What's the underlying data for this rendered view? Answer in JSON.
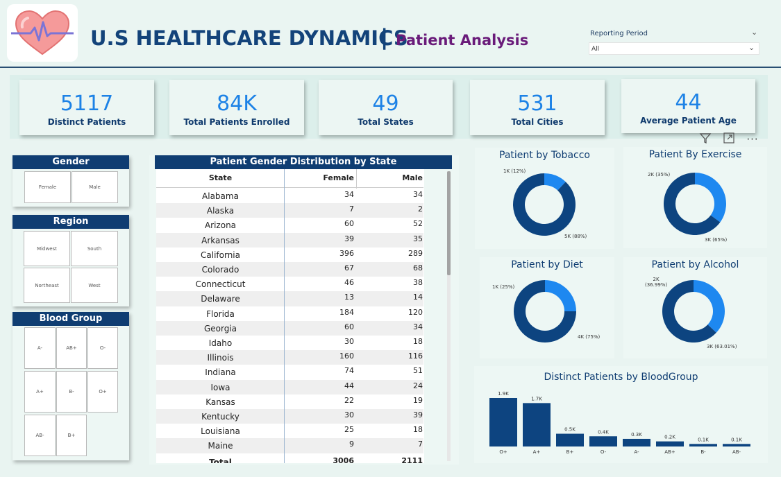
{
  "header": {
    "title": "U.S HEALTHCARE DYNAMICS",
    "separator": "|",
    "subtitle": "Patient Analysis",
    "reporting_period": {
      "label": "Reporting Period",
      "value": "All"
    }
  },
  "kpis": [
    {
      "value": "5117",
      "label": "Distinct Patients"
    },
    {
      "value": "84K",
      "label": "Total Patients Enrolled"
    },
    {
      "value": "49",
      "label": "Total States"
    },
    {
      "value": "531",
      "label": "Total Cities"
    },
    {
      "value": "44",
      "label": "Average Patient Age"
    }
  ],
  "slicers": {
    "gender": {
      "title": "Gender",
      "options": [
        "Female",
        "Male"
      ]
    },
    "region": {
      "title": "Region",
      "options": [
        "Midwest",
        "South",
        "Northeast",
        "West"
      ]
    },
    "blood_group": {
      "title": "Blood Group",
      "options": [
        "A-",
        "AB+",
        "O-",
        "A+",
        "B-",
        "O+",
        "AB-",
        "B+"
      ]
    }
  },
  "table": {
    "title": "Patient Gender Distribution by State",
    "columns": [
      "State",
      "Female",
      "Male"
    ],
    "rows": [
      [
        "Alabama",
        "34",
        "34"
      ],
      [
        "Alaska",
        "7",
        "2"
      ],
      [
        "Arizona",
        "60",
        "52"
      ],
      [
        "Arkansas",
        "39",
        "35"
      ],
      [
        "California",
        "396",
        "289"
      ],
      [
        "Colorado",
        "67",
        "68"
      ],
      [
        "Connecticut",
        "46",
        "38"
      ],
      [
        "Delaware",
        "13",
        "14"
      ],
      [
        "Florida",
        "184",
        "120"
      ],
      [
        "Georgia",
        "60",
        "34"
      ],
      [
        "Idaho",
        "30",
        "18"
      ],
      [
        "Illinois",
        "160",
        "116"
      ],
      [
        "Indiana",
        "74",
        "51"
      ],
      [
        "Iowa",
        "44",
        "24"
      ],
      [
        "Kansas",
        "22",
        "19"
      ],
      [
        "Kentucky",
        "30",
        "39"
      ],
      [
        "Louisiana",
        "25",
        "18"
      ],
      [
        "Maine",
        "9",
        "7"
      ]
    ],
    "total": [
      "Total",
      "3006",
      "2111"
    ]
  },
  "donuts": [
    {
      "title": "Patient by Tobacco",
      "slices": [
        {
          "label": "1K (12%)",
          "pct": 12,
          "color": "#1e88f0"
        },
        {
          "label": "5K (88%)",
          "pct": 88,
          "color": "#0d4480"
        }
      ]
    },
    {
      "title": "Patient By Exercise",
      "slices": [
        {
          "label": "2K (35%)",
          "pct": 35,
          "color": "#1e88f0"
        },
        {
          "label": "3K (65%)",
          "pct": 65,
          "color": "#0d4480"
        }
      ]
    },
    {
      "title": "Patient by Diet",
      "slices": [
        {
          "label": "1K (25%)",
          "pct": 25,
          "color": "#1e88f0"
        },
        {
          "label": "4K (75%)",
          "pct": 75,
          "color": "#0d4480"
        }
      ]
    },
    {
      "title": "Patient by Alcohol",
      "slices": [
        {
          "label": "2K\n(36.99%)",
          "pct": 36.99,
          "color": "#1e88f0"
        },
        {
          "label": "3K (63.01%)",
          "pct": 63.01,
          "color": "#0d4480"
        }
      ]
    }
  ],
  "chart_data": {
    "type": "bar",
    "title": "Distinct Patients by BloodGroup",
    "categories": [
      "O+",
      "A+",
      "B+",
      "O-",
      "A-",
      "AB+",
      "B-",
      "AB-"
    ],
    "values": [
      1900,
      1700,
      500,
      400,
      300,
      200,
      100,
      100
    ],
    "data_labels": [
      "1.9K",
      "1.7K",
      "0.5K",
      "0.4K",
      "0.3K",
      "0.2K",
      "0.1K",
      "0.1K"
    ],
    "color": "#0d4480"
  },
  "icons": {
    "filter": "filter-icon",
    "focus": "focus-mode-icon",
    "more": "more-options-icon"
  }
}
